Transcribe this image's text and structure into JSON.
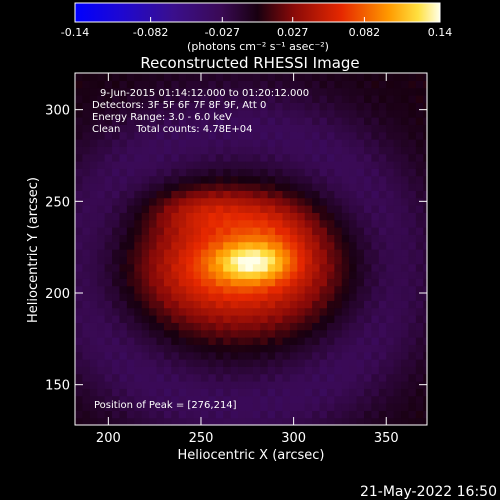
{
  "chart_data": {
    "type": "heatmap",
    "title": "Reconstructed RHESSI Image",
    "xlabel": "Heliocentric X (arcsec)",
    "ylabel": "Heliocentric Y (arcsec)",
    "xlim": [
      182,
      372
    ],
    "ylim": [
      128,
      320
    ],
    "x_ticks": [
      200,
      250,
      300,
      350
    ],
    "y_ticks": [
      150,
      200,
      250,
      300
    ],
    "colorbar": {
      "min": -0.14,
      "max": 0.14,
      "ticks": [
        -0.14,
        -0.082,
        -0.027,
        0.027,
        0.082,
        0.14
      ],
      "tick_labels": [
        "-0.14",
        "-0.082",
        "-0.027",
        "0.027",
        "0.082",
        "0.14"
      ],
      "unit_label": "(photons cm⁻² s⁻¹ asec⁻²)"
    },
    "annotations": [
      "9-Jun-2015 01:14:12.000 to 01:20:12.000",
      "Detectors: 3F 5F 6F 7F 8F 9F, Att 0",
      "Energy Range: 3.0 - 6.0 keV",
      "Clean     Total counts: 4.78E+04",
      "Position of Peak = [276,214]"
    ],
    "peak": [
      276,
      214
    ],
    "sources": [
      {
        "x": 270,
        "y": 214,
        "sx": 36,
        "sy": 22,
        "amp": 0.082
      },
      {
        "x": 278,
        "y": 217,
        "sx": 14,
        "sy": 7,
        "amp": 0.062
      },
      {
        "x": 252,
        "y": 246,
        "sx": 22,
        "sy": 9,
        "amp": 0.032
      },
      {
        "x": 290,
        "y": 236,
        "sx": 16,
        "sy": 12,
        "amp": 0.02
      }
    ],
    "ring": {
      "x": 270,
      "y": 214,
      "r": 82,
      "width": 22,
      "amp": -0.03
    },
    "grid": false
  },
  "footer": {
    "date_stamp": "21-May-2022 16:50"
  }
}
